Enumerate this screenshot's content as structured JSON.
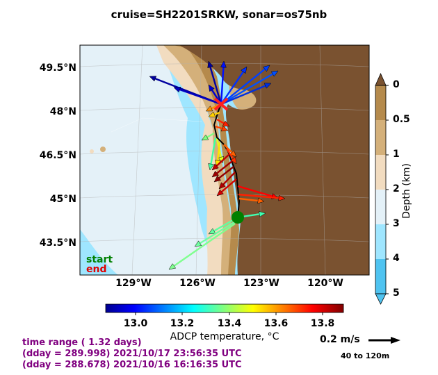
{
  "title": "cruise=SH2201SRKW,   sonar=os75nb",
  "map": {
    "lat_labels": [
      "49.5°N",
      "48°N",
      "46.5°N",
      "45°N",
      "43.5°N"
    ],
    "lon_labels": [
      "129°W",
      "126°W",
      "123°W",
      "120°W"
    ],
    "start_label": "start",
    "end_label": "end",
    "start_marker_color": "#008000",
    "end_marker_color": "#ff2020",
    "track_color": "#000000",
    "land_color": "#7a5230",
    "water_color": "#9fe6ff"
  },
  "depth_bar": {
    "title": "Depth (km)",
    "ticks": [
      "0",
      "0.5",
      "1",
      "2",
      "3",
      "4",
      "5"
    ],
    "colors": [
      "#b58a4c",
      "#d4b07a",
      "#f2dcc0",
      "#e4f1f8",
      "#9fe6ff",
      "#4fc3f0"
    ]
  },
  "temp_bar": {
    "title": "ADCP temperature, °C",
    "ticks": [
      "13.0",
      "13.2",
      "13.4",
      "13.6",
      "13.8"
    ],
    "range": [
      12.85,
      13.88
    ],
    "colormap": "jet"
  },
  "info": {
    "line1": "time range ( 1.32 days)",
    "line2": "(dday = 289.998) 2021/10/17 23:56:35 UTC",
    "line3": "(dday = 288.678) 2021/10/16 16:16:35 UTC"
  },
  "scale": {
    "label": "0.2 m/s",
    "range": "40 to 120m"
  }
}
